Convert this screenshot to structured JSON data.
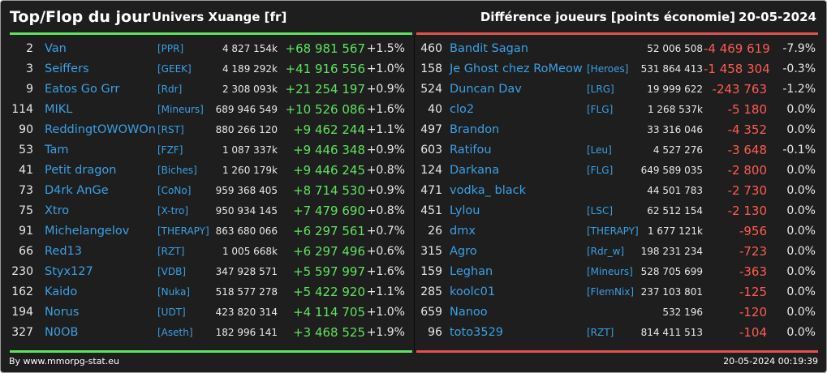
{
  "header": {
    "title": "Top/Flop du jour",
    "world": "Univers Xuange [fr]",
    "diff_label": "Différence joueurs [points économie]",
    "date": "20-05-2024"
  },
  "colors": {
    "positive": "#5ee35e",
    "negative": "#ff5a52",
    "name": "#3aa0e6",
    "background": "#1e1e1e"
  },
  "top": [
    {
      "rank": "2",
      "name": "Van",
      "alliance": "[PPR]",
      "points": "4 827 154k",
      "diff": "+68 981 567",
      "pct": "+1.5%"
    },
    {
      "rank": "3",
      "name": "Seiffers",
      "alliance": "[GEEK]",
      "points": "4 189 292k",
      "diff": "+41 916 556",
      "pct": "+1.0%"
    },
    {
      "rank": "9",
      "name": "Eatos Go Grr",
      "alliance": "[Rdr]",
      "points": "2 308 093k",
      "diff": "+21 254 197",
      "pct": "+0.9%"
    },
    {
      "rank": "114",
      "name": "MIKL",
      "alliance": "[Mineurs]",
      "points": "689 946 549",
      "diff": "+10 526 086",
      "pct": "+1.6%"
    },
    {
      "rank": "90",
      "name": "ReddingtOWOWOn",
      "alliance": "[RST]",
      "points": "880 266 120",
      "diff": "+9 462 244",
      "pct": "+1.1%"
    },
    {
      "rank": "53",
      "name": "Tam",
      "alliance": "[FZF]",
      "points": "1 087 337k",
      "diff": "+9 446 348",
      "pct": "+0.9%"
    },
    {
      "rank": "41",
      "name": "Petit dragon",
      "alliance": "[Biches]",
      "points": "1 260 179k",
      "diff": "+9 446 245",
      "pct": "+0.8%"
    },
    {
      "rank": "73",
      "name": "D4rk AnGe",
      "alliance": "[CoNo]",
      "points": "959 368 405",
      "diff": "+8 714 530",
      "pct": "+0.9%"
    },
    {
      "rank": "75",
      "name": "Xtro",
      "alliance": "[X-tro]",
      "points": "950 934 145",
      "diff": "+7 479 690",
      "pct": "+0.8%"
    },
    {
      "rank": "91",
      "name": "Michelangelov",
      "alliance": "[THERAPY]",
      "points": "863 680 066",
      "diff": "+6 297 561",
      "pct": "+0.7%"
    },
    {
      "rank": "66",
      "name": "Red13",
      "alliance": "[RZT]",
      "points": "1 005 668k",
      "diff": "+6 297 496",
      "pct": "+0.6%"
    },
    {
      "rank": "230",
      "name": "Styx127",
      "alliance": "[VDB]",
      "points": "347 928 571",
      "diff": "+5 597 997",
      "pct": "+1.6%"
    },
    {
      "rank": "162",
      "name": "Kaido",
      "alliance": "[Nuka]",
      "points": "518 577 278",
      "diff": "+5 422 920",
      "pct": "+1.1%"
    },
    {
      "rank": "194",
      "name": "Norus",
      "alliance": "[UDT]",
      "points": "423 820 314",
      "diff": "+4 114 705",
      "pct": "+1.0%"
    },
    {
      "rank": "327",
      "name": "N0OB",
      "alliance": "[Aseth]",
      "points": "182 996 141",
      "diff": "+3 468 525",
      "pct": "+1.9%"
    }
  ],
  "flop": [
    {
      "rank": "460",
      "name": "Bandit Sagan",
      "alliance": "",
      "points": "52 006 508",
      "diff": "-4 469 619",
      "pct": "-7.9%"
    },
    {
      "rank": "158",
      "name": "Je Ghost chez RoMeow",
      "alliance": "[Heroes]",
      "points": "531 864 413",
      "diff": "-1 458 304",
      "pct": "-0.3%"
    },
    {
      "rank": "524",
      "name": "Duncan Dav",
      "alliance": "[LRG]",
      "points": "19 999 622",
      "diff": "-243 763",
      "pct": "-1.2%"
    },
    {
      "rank": "40",
      "name": "clo2",
      "alliance": "[FLG]",
      "points": "1 268 537k",
      "diff": "-5 180",
      "pct": "0.0%"
    },
    {
      "rank": "497",
      "name": "Brandon",
      "alliance": "",
      "points": "33 316 046",
      "diff": "-4 352",
      "pct": "0.0%"
    },
    {
      "rank": "603",
      "name": "Ratifou",
      "alliance": "[Leu]",
      "points": "4 527 276",
      "diff": "-3 648",
      "pct": "-0.1%"
    },
    {
      "rank": "124",
      "name": "Darkana",
      "alliance": "[FLG]",
      "points": "649 589 035",
      "diff": "-2 800",
      "pct": "0.0%"
    },
    {
      "rank": "471",
      "name": "vodka_ black",
      "alliance": "",
      "points": "44 501 783",
      "diff": "-2 730",
      "pct": "0.0%"
    },
    {
      "rank": "451",
      "name": "Lylou",
      "alliance": "[LSC]",
      "points": "62 512 154",
      "diff": "-2 130",
      "pct": "0.0%"
    },
    {
      "rank": "26",
      "name": "dmx",
      "alliance": "[THERAPY]",
      "points": "1 677 121k",
      "diff": "-956",
      "pct": "0.0%"
    },
    {
      "rank": "315",
      "name": "Agro",
      "alliance": "[Rdr_w]",
      "points": "198 231 234",
      "diff": "-723",
      "pct": "0.0%"
    },
    {
      "rank": "159",
      "name": "Leghan",
      "alliance": "[Mineurs]",
      "points": "528 705 699",
      "diff": "-363",
      "pct": "0.0%"
    },
    {
      "rank": "285",
      "name": "koolc01",
      "alliance": "[FlemNix]",
      "points": "237 103 801",
      "diff": "-125",
      "pct": "0.0%"
    },
    {
      "rank": "659",
      "name": "Nanoo",
      "alliance": "",
      "points": "532 196",
      "diff": "-120",
      "pct": "0.0%"
    },
    {
      "rank": "96",
      "name": "toto3529",
      "alliance": "[RZT]",
      "points": "814 411 513",
      "diff": "-104",
      "pct": "0.0%"
    }
  ],
  "footer": {
    "source": "By www.mmorpg-stat.eu",
    "timestamp": "20-05-2024 00:19:39"
  }
}
